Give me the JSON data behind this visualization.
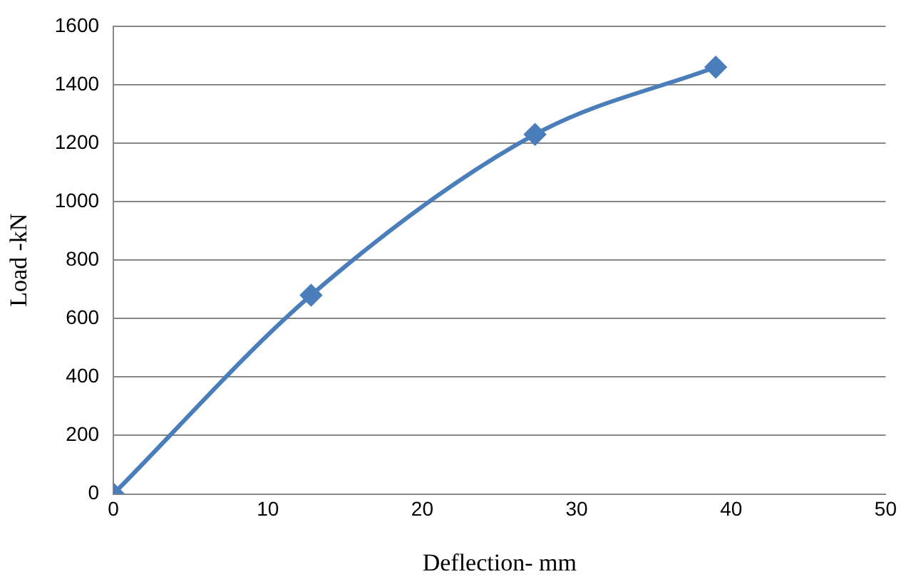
{
  "chart_data": {
    "type": "line",
    "xlabel": "Deflection- mm",
    "ylabel": "Load -kN",
    "x": [
      0,
      12.8,
      27.3,
      39
    ],
    "series": [
      {
        "color": "#4a7ebb",
        "values": [
          0,
          680,
          1230,
          1460
        ]
      }
    ],
    "xlim": [
      0,
      50
    ],
    "xticks": [
      0,
      10,
      20,
      30,
      40,
      50
    ],
    "ylim": [
      0,
      1600
    ],
    "yticks": [
      0,
      200,
      400,
      600,
      800,
      1000,
      1200,
      1400,
      1600
    ],
    "grid": "y",
    "legend": false,
    "marker": "diamond",
    "line_style": "solid"
  }
}
